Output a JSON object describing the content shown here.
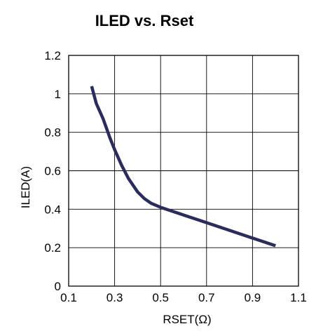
{
  "chart_data": {
    "type": "line",
    "title": "ILED vs. Rset",
    "xlabel": "RSET(Ω)",
    "ylabel": "ILED(A)",
    "xlim": [
      0.1,
      1.1
    ],
    "ylim": [
      0,
      1.2
    ],
    "x_ticks": [
      "0.1",
      "0.3",
      "0.5",
      "0.7",
      "0.9",
      "1.1"
    ],
    "y_ticks": [
      "0",
      "0.2",
      "0.4",
      "0.6",
      "0.8",
      "1",
      "1.2"
    ],
    "grid": true,
    "legend": "none",
    "series": [
      {
        "color": "#2a2d5c",
        "x": [
          0.2,
          0.22,
          0.25,
          0.28,
          0.3,
          0.33,
          0.36,
          0.4,
          0.43,
          0.46,
          0.5,
          0.55,
          0.6,
          0.7,
          0.8,
          0.9,
          1.0
        ],
        "y": [
          1.04,
          0.95,
          0.87,
          0.77,
          0.71,
          0.63,
          0.56,
          0.49,
          0.455,
          0.43,
          0.41,
          0.39,
          0.37,
          0.33,
          0.29,
          0.25,
          0.21
        ]
      }
    ]
  }
}
